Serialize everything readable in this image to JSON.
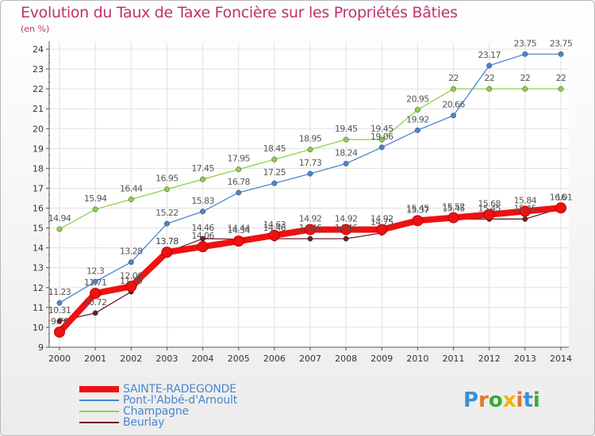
{
  "title": "Evolution du Taux de Taxe Foncière sur les Propriétés Bâties",
  "unit": "(en %)",
  "logo": {
    "text": "Proxiti",
    "letters": [
      {
        "ch": "P",
        "color": "#3b8fd6"
      },
      {
        "ch": "r",
        "color": "#e0762c"
      },
      {
        "ch": "o",
        "color": "#3ea935"
      },
      {
        "ch": "x",
        "color": "#f0b400"
      },
      {
        "ch": "i",
        "color": "#e0762c"
      },
      {
        "ch": "t",
        "color": "#3b8fd6"
      },
      {
        "ch": "i",
        "color": "#3ea935"
      }
    ]
  },
  "chart_data": {
    "type": "line",
    "title": "Evolution du Taux de Taxe Foncière sur les Propriétés Bâties",
    "ylabel": "(en %)",
    "x": [
      "2000",
      "2001",
      "2002",
      "2003",
      "2004",
      "2005",
      "2006",
      "2007",
      "2008",
      "2009",
      "2010",
      "2011",
      "2012",
      "2013",
      "2014"
    ],
    "ylim": [
      9,
      24
    ],
    "yticks": [
      "9",
      "10",
      "11",
      "12",
      "13",
      "14",
      "15",
      "16",
      "17",
      "18",
      "19",
      "20",
      "21",
      "22",
      "23",
      "24"
    ],
    "grid": true,
    "legend_position": "bottom-left",
    "series": [
      {
        "name": "SAINTE-RADEGONDE",
        "color": "#ee1111",
        "values": [
          9.76,
          11.71,
          12.06,
          13.78,
          14.06,
          14.34,
          14.63,
          14.92,
          14.92,
          14.92,
          15.37,
          15.52,
          15.68,
          15.84,
          16.01
        ],
        "labels": [
          "9.76",
          "11.71",
          "12.06",
          "13.78",
          "14.06",
          "14.34",
          "14.63",
          "14.92",
          "14.92",
          "14.92",
          "15.37",
          "15.52",
          "15.68",
          "15.84",
          "16.01"
        ]
      },
      {
        "name": "Pont-l'Abbé-d'Arnoult",
        "color": "#4a86d0",
        "values": [
          11.23,
          12.3,
          13.28,
          15.22,
          15.83,
          16.78,
          17.25,
          17.73,
          18.24,
          19.06,
          19.92,
          20.66,
          23.17,
          23.75,
          23.75
        ],
        "labels": [
          "11.23",
          "12.3",
          "13.28",
          "15.22",
          "15.83",
          "16.78",
          "17.25",
          "17.73",
          "18.24",
          "19.06",
          "19.92",
          "20.66",
          "23.17",
          "23.75",
          "23.75"
        ]
      },
      {
        "name": "Champagne",
        "color": "#8ed14a",
        "values": [
          14.94,
          15.94,
          16.44,
          16.95,
          17.45,
          17.95,
          18.45,
          18.95,
          19.45,
          19.45,
          20.95,
          22,
          22,
          22,
          22
        ],
        "labels": [
          "14.94",
          "15.94",
          "16.44",
          "16.95",
          "17.45",
          "17.95",
          "18.45",
          "18.95",
          "19.45",
          "19.45",
          "20.95",
          "22",
          "22",
          "22",
          "22"
        ]
      },
      {
        "name": "Beurlay",
        "color": "#6b1f28",
        "values": [
          10.31,
          10.72,
          11.79,
          13.78,
          14.46,
          14.44,
          14.46,
          14.46,
          14.46,
          14.75,
          15.45,
          15.45,
          15.45,
          15.45,
          16
        ],
        "labels": [
          "10.31",
          "10.72",
          "11.79",
          "13.78",
          "14.46",
          "14.44",
          "14.46",
          "14.46",
          "14.46",
          "14.75",
          "15.45",
          "15.45",
          "15.45",
          "15.45",
          "16"
        ]
      }
    ]
  }
}
